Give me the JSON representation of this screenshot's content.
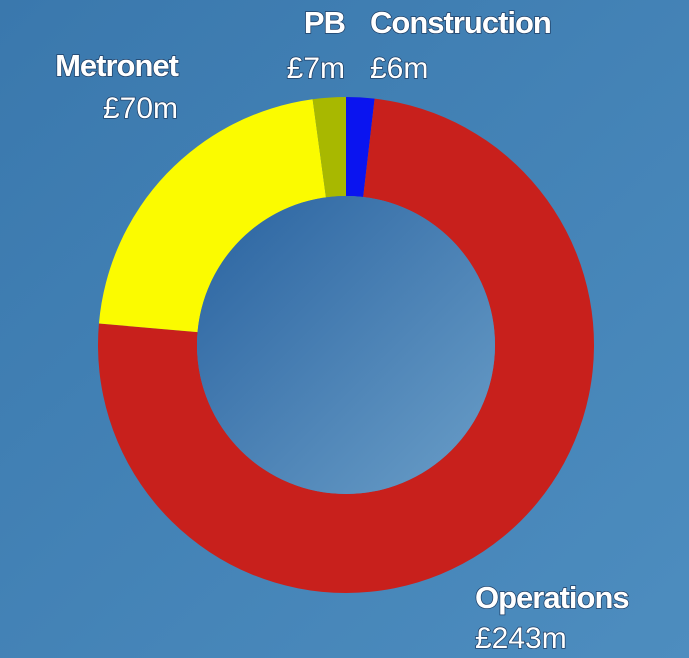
{
  "chart_data": {
    "type": "donut",
    "categories": [
      "Construction",
      "Operations",
      "Metronet",
      "PB"
    ],
    "values": [
      6,
      243,
      70,
      7
    ],
    "value_labels": [
      "£6m",
      "£243m",
      "£70m",
      "£7m"
    ],
    "colors": [
      "#0a14f0",
      "#c8201c",
      "#fbfb00",
      "#a8b800"
    ]
  }
}
